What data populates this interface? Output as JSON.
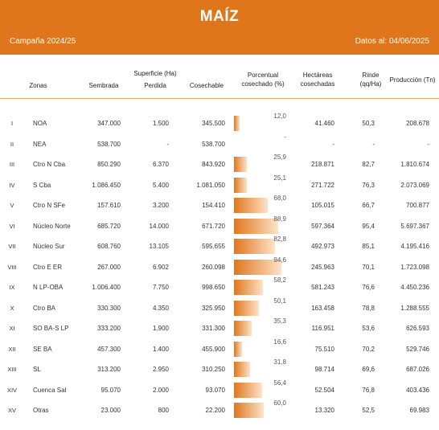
{
  "header": {
    "title": "MAÍZ",
    "campaign": "Campaña 2024/25",
    "date": "Datos al: 04/06/2025"
  },
  "columns": {
    "zonas": "Zonas",
    "superficie": "Superficie (Ha)",
    "sembrada": "Sembrada",
    "perdida": "Perdida",
    "cosechable": "Cosechable",
    "porcentual_1": "Porcentual",
    "porcentual_2": "cosechado (%)",
    "hectareas_1": "Hectáreas",
    "hectareas_2": "cosechadas",
    "rinde_1": "Rinde",
    "rinde_2": "(qq/Ha)",
    "produccion": "Producción (Tn)"
  },
  "bar_color": "#e0761c",
  "rows": [
    {
      "roman": "I",
      "zona": "NOA",
      "sembrada": "347.000",
      "perdida": "1.500",
      "cosechable": "345.500",
      "pct": "12,0",
      "pct_value": 12.0,
      "hectareas": "41.460",
      "rinde": "50,3",
      "produccion": "208.678"
    },
    {
      "roman": "II",
      "zona": "NEA",
      "sembrada": "538.700",
      "perdida": "-",
      "cosechable": "538.700",
      "pct": "-",
      "pct_value": 0,
      "hectareas": "-",
      "rinde": "-",
      "produccion": "-"
    },
    {
      "roman": "III",
      "zona": "Ctro N Cba",
      "sembrada": "850.290",
      "perdida": "6.370",
      "cosechable": "843.920",
      "pct": "25,9",
      "pct_value": 25.9,
      "hectareas": "218.871",
      "rinde": "82,7",
      "produccion": "1.810.674"
    },
    {
      "roman": "IV",
      "zona": "S Cba",
      "sembrada": "1.086.450",
      "perdida": "5.400",
      "cosechable": "1.081.050",
      "pct": "25,1",
      "pct_value": 25.1,
      "hectareas": "271.722",
      "rinde": "76,3",
      "produccion": "2.073.069"
    },
    {
      "roman": "V",
      "zona": "Ctro N SFe",
      "sembrada": "157.610",
      "perdida": "3.200",
      "cosechable": "154.410",
      "pct": "68,0",
      "pct_value": 68.0,
      "hectareas": "105.015",
      "rinde": "66,7",
      "produccion": "700.877"
    },
    {
      "roman": "VI",
      "zona": "Núcleo Norte",
      "sembrada": "685.720",
      "perdida": "14.000",
      "cosechable": "671.720",
      "pct": "88,9",
      "pct_value": 88.9,
      "hectareas": "597.364",
      "rinde": "95,4",
      "produccion": "5.697.367"
    },
    {
      "roman": "VII",
      "zona": "Núcleo Sur",
      "sembrada": "608.760",
      "perdida": "13.105",
      "cosechable": "595.655",
      "pct": "82,8",
      "pct_value": 82.8,
      "hectareas": "492.973",
      "rinde": "85,1",
      "produccion": "4.195.416"
    },
    {
      "roman": "VIII",
      "zona": "Ctro E ER",
      "sembrada": "267.000",
      "perdida": "6.902",
      "cosechable": "260.098",
      "pct": "94,6",
      "pct_value": 94.6,
      "hectareas": "245.963",
      "rinde": "70,1",
      "produccion": "1.723.098"
    },
    {
      "roman": "IX",
      "zona": "N LP-OBA",
      "sembrada": "1.006.400",
      "perdida": "7.750",
      "cosechable": "998.650",
      "pct": "58,2",
      "pct_value": 58.2,
      "hectareas": "581.243",
      "rinde": "76,6",
      "produccion": "4.450.236"
    },
    {
      "roman": "X",
      "zona": "Ctro BA",
      "sembrada": "330.300",
      "perdida": "4.350",
      "cosechable": "325.950",
      "pct": "50,1",
      "pct_value": 50.1,
      "hectareas": "163.458",
      "rinde": "78,8",
      "produccion": "1.288.555"
    },
    {
      "roman": "XI",
      "zona": "SO BA-S LP",
      "sembrada": "333.200",
      "perdida": "1.900",
      "cosechable": "331.300",
      "pct": "35,3",
      "pct_value": 35.3,
      "hectareas": "116.951",
      "rinde": "53,6",
      "produccion": "626.593"
    },
    {
      "roman": "XII",
      "zona": "SE BA",
      "sembrada": "457.300",
      "perdida": "1.400",
      "cosechable": "455.900",
      "pct": "16,6",
      "pct_value": 16.6,
      "hectareas": "75.510",
      "rinde": "70,2",
      "produccion": "529.746"
    },
    {
      "roman": "XIII",
      "zona": "SL",
      "sembrada": "313.200",
      "perdida": "2.950",
      "cosechable": "310.250",
      "pct": "31,8",
      "pct_value": 31.8,
      "hectareas": "98.714",
      "rinde": "69,6",
      "produccion": "687.026"
    },
    {
      "roman": "XIV",
      "zona": "Cuenca Sal",
      "sembrada": "95.070",
      "perdida": "2.000",
      "cosechable": "93.070",
      "pct": "56,4",
      "pct_value": 56.4,
      "hectareas": "52.504",
      "rinde": "76,8",
      "produccion": "403.436"
    },
    {
      "roman": "XV",
      "zona": "Otras",
      "sembrada": "23.000",
      "perdida": "800",
      "cosechable": "22.200",
      "pct": "60,0",
      "pct_value": 60.0,
      "hectareas": "13.320",
      "rinde": "52,5",
      "produccion": "69.983"
    }
  ]
}
